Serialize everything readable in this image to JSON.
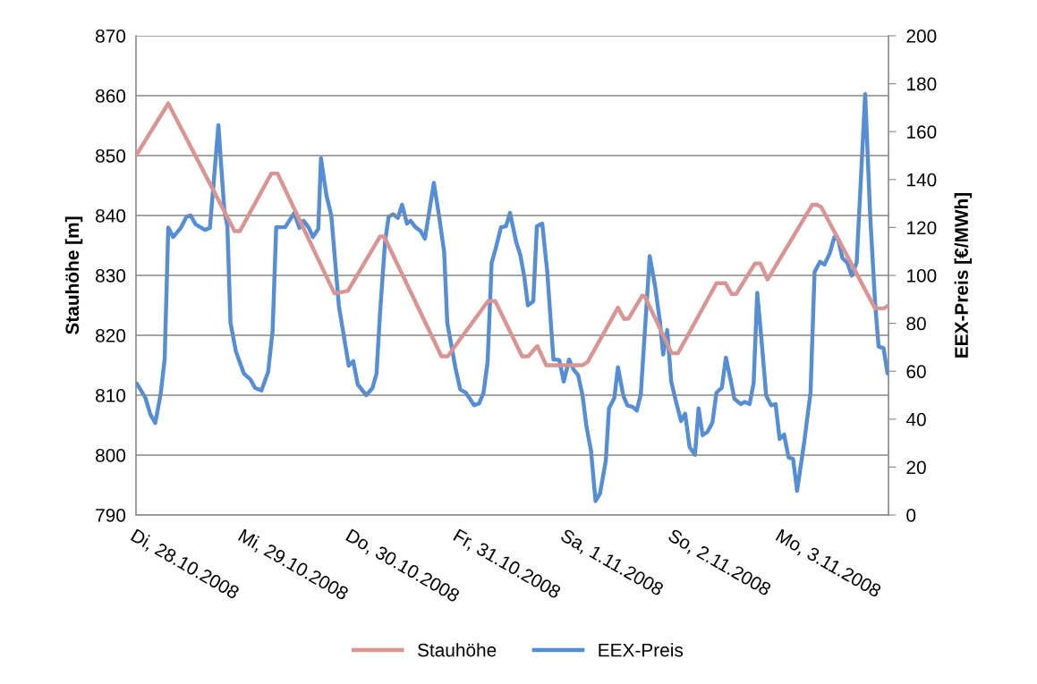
{
  "chart_data": {
    "type": "line",
    "ylabel": "Stauhöhe [m]",
    "y2label": "EEX-Preis [€/MWh]",
    "xlim": [
      "2008-10-28T00:00",
      "2008-11-04T00:00"
    ],
    "xticks": [
      {
        "value": "2008-10-28",
        "label": "Di, 28.10.2008"
      },
      {
        "value": "2008-10-29",
        "label": "Mi, 29.10.2008"
      },
      {
        "value": "2008-10-30",
        "label": "Do, 30.10.2008"
      },
      {
        "value": "2008-10-31",
        "label": "Fr, 31.10.2008"
      },
      {
        "value": "2008-11-01",
        "label": "Sa, 1.11.2008"
      },
      {
        "value": "2008-11-02",
        "label": "So, 2.11.2008"
      },
      {
        "value": "2008-11-03",
        "label": "Mo, 3.11.2008"
      }
    ],
    "ylim": [
      790,
      870
    ],
    "yticks": [
      790,
      800,
      810,
      820,
      830,
      840,
      850,
      860,
      870
    ],
    "y2lim": [
      0,
      200
    ],
    "y2ticks": [
      0,
      20,
      40,
      60,
      80,
      100,
      120,
      140,
      160,
      180,
      200
    ],
    "grid": "y",
    "legend": "bottom",
    "line_style": "solid",
    "marker": "none",
    "series": [
      {
        "name": "Stauhöhe",
        "color": "#d99594",
        "x": [
          "2008-10-28T00:00",
          "2008-10-28T07:12",
          "2008-10-28T22:00",
          "2008-10-28T23:12",
          "2008-10-29T06:12",
          "2008-10-29T07:36",
          "2008-10-29T20:18",
          "2008-10-29T23:18",
          "2008-10-30T06:30",
          "2008-10-30T07:24",
          "2008-10-30T20:12",
          "2008-10-30T21:36",
          "2008-10-31T06:36",
          "2008-10-31T08:12",
          "2008-10-31T14:12",
          "2008-10-31T15:36",
          "2008-10-31T17:36",
          "2008-10-31T19:36",
          "2008-11-01T03:36",
          "2008-11-01T04:48",
          "2008-11-01T11:36",
          "2008-11-01T13:00",
          "2008-11-01T14:00",
          "2008-11-01T17:00",
          "2008-11-01T17:36",
          "2008-11-01T23:36",
          "2008-11-02T01:00",
          "2008-11-02T09:36",
          "2008-11-02T11:36",
          "2008-11-02T13:00",
          "2008-11-02T14:00",
          "2008-11-02T18:12",
          "2008-11-02T19:24",
          "2008-11-02T21:00",
          "2008-11-03T07:00",
          "2008-11-03T08:00",
          "2008-11-03T09:00",
          "2008-11-03T21:00",
          "2008-11-03T23:00",
          "2008-11-04T00:00"
        ],
        "values": [
          850,
          858.7,
          837.4,
          837.4,
          847,
          847,
          827,
          827.4,
          836.5,
          836.5,
          816.5,
          816.5,
          825.7,
          825.7,
          816.5,
          816.5,
          818.2,
          815,
          815,
          815.5,
          824.6,
          822.7,
          822.8,
          826.6,
          826.5,
          817,
          817,
          828.7,
          828.7,
          826.9,
          826.9,
          832,
          832,
          829.3,
          841.8,
          841.8,
          841.4,
          824.5,
          824.5,
          825
        ]
      },
      {
        "name": "EEX-Preis",
        "color": "#558ed5",
        "axis": "y2",
        "x": [
          "2008-10-28T00:12",
          "2008-10-28T02:06",
          "2008-10-28T03:12",
          "2008-10-28T04:18",
          "2008-10-28T05:30",
          "2008-10-28T06:24",
          "2008-10-28T07:12",
          "2008-10-28T08:18",
          "2008-10-28T10:00",
          "2008-10-28T11:18",
          "2008-10-28T12:12",
          "2008-10-28T13:18",
          "2008-10-28T15:24",
          "2008-10-28T16:30",
          "2008-10-28T18:24",
          "2008-10-28T19:42",
          "2008-10-28T20:24",
          "2008-10-28T21:06",
          "2008-10-28T22:18",
          "2008-10-29T00:06",
          "2008-10-29T01:30",
          "2008-10-29T02:36",
          "2008-10-29T04:00",
          "2008-10-29T05:30",
          "2008-10-29T06:30",
          "2008-10-29T07:18",
          "2008-10-29T09:18",
          "2008-10-29T11:18",
          "2008-10-29T12:30",
          "2008-10-29T13:24",
          "2008-10-29T14:36",
          "2008-10-29T15:30",
          "2008-10-29T16:42",
          "2008-10-29T17:18",
          "2008-10-29T18:30",
          "2008-10-29T19:36",
          "2008-10-29T21:18",
          "2008-10-29T23:30",
          "2008-10-30T00:30",
          "2008-10-30T01:30",
          "2008-10-30T03:24",
          "2008-10-30T04:48",
          "2008-10-30T05:42",
          "2008-10-30T06:30",
          "2008-10-30T07:36",
          "2008-10-30T08:24",
          "2008-10-30T09:24",
          "2008-10-30T10:30",
          "2008-10-30T11:24",
          "2008-10-30T12:30",
          "2008-10-30T13:18",
          "2008-10-30T14:24",
          "2008-10-30T15:30",
          "2008-10-30T16:30",
          "2008-10-30T18:30",
          "2008-10-30T19:42",
          "2008-10-30T20:48",
          "2008-10-30T21:30",
          "2008-10-30T23:18",
          "2008-10-31T00:24",
          "2008-10-31T01:36",
          "2008-10-31T03:30",
          "2008-10-31T04:36",
          "2008-10-31T05:36",
          "2008-10-31T06:30",
          "2008-10-31T07:24",
          "2008-10-31T08:18",
          "2008-10-31T09:30",
          "2008-10-31T10:36",
          "2008-10-31T11:30",
          "2008-10-31T12:54",
          "2008-10-31T13:48",
          "2008-10-31T14:42",
          "2008-10-31T15:30",
          "2008-10-31T16:42",
          "2008-10-31T17:30",
          "2008-10-31T18:42",
          "2008-10-31T19:48",
          "2008-10-31T21:12",
          "2008-10-31T22:30",
          "2008-10-31T23:30",
          "2008-11-01T00:42",
          "2008-11-01T01:48",
          "2008-11-01T02:42",
          "2008-11-01T03:42",
          "2008-11-01T04:36",
          "2008-11-01T05:36",
          "2008-11-01T06:36",
          "2008-11-01T07:36",
          "2008-11-01T08:54",
          "2008-11-01T09:36",
          "2008-11-01T10:48",
          "2008-11-01T11:36",
          "2008-11-01T12:48",
          "2008-11-01T13:42",
          "2008-11-01T14:54",
          "2008-11-01T15:48",
          "2008-11-01T16:42",
          "2008-11-01T18:42",
          "2008-11-01T19:54",
          "2008-11-01T21:00",
          "2008-11-01T21:42",
          "2008-11-01T22:36",
          "2008-11-01T23:30",
          "2008-11-02T00:30",
          "2008-11-02T01:42",
          "2008-11-02T02:36",
          "2008-11-02T03:36",
          "2008-11-02T04:48",
          "2008-11-02T05:36",
          "2008-11-02T06:30",
          "2008-11-02T07:36",
          "2008-11-02T08:42",
          "2008-11-02T09:36",
          "2008-11-02T10:48",
          "2008-11-02T11:42",
          "2008-11-02T12:54",
          "2008-11-02T13:36",
          "2008-11-02T15:00",
          "2008-11-02T15:54",
          "2008-11-02T17:00",
          "2008-11-02T17:54",
          "2008-11-02T18:42",
          "2008-11-02T19:36",
          "2008-11-02T20:42",
          "2008-11-02T21:48",
          "2008-11-02T22:48",
          "2008-11-02T23:42",
          "2008-11-03T00:42",
          "2008-11-03T01:42",
          "2008-11-03T02:42",
          "2008-11-03T03:36",
          "2008-11-03T05:12",
          "2008-11-03T06:36",
          "2008-11-03T07:30",
          "2008-11-03T08:42",
          "2008-11-03T09:42",
          "2008-11-03T10:54",
          "2008-11-03T11:54",
          "2008-11-03T12:48",
          "2008-11-03T13:42",
          "2008-11-03T14:48",
          "2008-11-03T15:48",
          "2008-11-03T16:54",
          "2008-11-03T18:48",
          "2008-11-03T19:54",
          "2008-11-03T21:00",
          "2008-11-03T21:48",
          "2008-11-03T22:54",
          "2008-11-03T23:48"
        ],
        "values": [
          54.8,
          48.9,
          42,
          38.4,
          50.4,
          65,
          120,
          116,
          119.8,
          124.6,
          125,
          121.3,
          119,
          119.8,
          162.7,
          127.6,
          120.5,
          80.2,
          68.3,
          59,
          56.7,
          53,
          52,
          59.7,
          76.9,
          120.1,
          120.1,
          126,
          119.8,
          122.8,
          119.8,
          116,
          119.4,
          148.9,
          133.6,
          125,
          87.3,
          62.3,
          64.2,
          54.5,
          50,
          53,
          59,
          84.7,
          113.8,
          124.5,
          125.5,
          124,
          129.5,
          121.6,
          122.8,
          120.1,
          118.6,
          115.3,
          138.6,
          124.4,
          109.7,
          80.2,
          61.6,
          52.4,
          51.1,
          45.8,
          46.6,
          51.1,
          63.8,
          105.2,
          111.2,
          120.1,
          120.5,
          126.1,
          113.8,
          108.6,
          99.3,
          87.5,
          89.2,
          120.5,
          121.6,
          101.9,
          64.9,
          64.7,
          55.7,
          64.9,
          60.4,
          58.4,
          49.8,
          36.6,
          26.7,
          5.8,
          9,
          22.8,
          44.5,
          48.9,
          61.7,
          49.8,
          45.8,
          45.1,
          43.6,
          50.4,
          108,
          95.5,
          80.2,
          67,
          77.2,
          55.7,
          47.8,
          39.2,
          42.3,
          28.4,
          25.1,
          44.5,
          33.3,
          34.7,
          38.6,
          51.1,
          53.1,
          65.7,
          55.1,
          48.5,
          46.3,
          47.2,
          46.3,
          55.1,
          92.7,
          74.2,
          49.8,
          45.8,
          46.3,
          31.7,
          33.6,
          24,
          23.4,
          10.1,
          30.6,
          51.1,
          101.4,
          105.7,
          104.5,
          109.3,
          115.9,
          114.9,
          107.3,
          105.3,
          99.9,
          105.3,
          175.7,
          125.7,
          88.9,
          70.3,
          69.6,
          59.1
        ]
      }
    ]
  }
}
